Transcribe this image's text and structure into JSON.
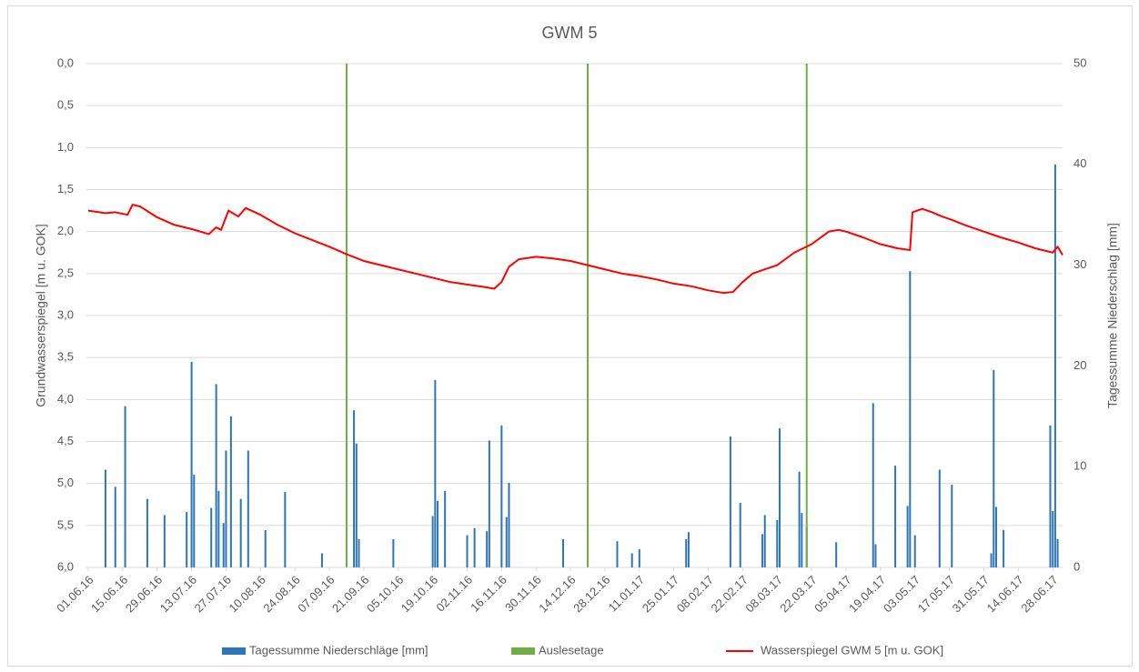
{
  "chart_data": {
    "type": "combo",
    "title": "GWM 5",
    "ylabel": "Grundwasserspiegel [m u. GOK]",
    "y2label": "Tagessumme Niederschlag [mm]",
    "xlim": [
      "01.06.16",
      "02.07.17"
    ],
    "xticks": [
      "01.06.16",
      "15.06.16",
      "29.06.16",
      "13.07.16",
      "27.07.16",
      "10.08.16",
      "24.08.16",
      "07.09.16",
      "21.09.16",
      "05.10.16",
      "19.10.16",
      "02.11.16",
      "16.11.16",
      "30.11.16",
      "14.12.16",
      "28.12.16",
      "11.01.17",
      "25.01.17",
      "08.02.17",
      "22.02.17",
      "08.03.17",
      "22.03.17",
      "05.04.17",
      "19.04.17",
      "03.05.17",
      "17.05.17",
      "31.05.17",
      "14.06.17",
      "28.06.17"
    ],
    "ylim": [
      0,
      6
    ],
    "yreverse": true,
    "yticks": [
      {
        "value": 0,
        "label": "0,0"
      },
      {
        "value": 0.5,
        "label": "0,5"
      },
      {
        "value": 1,
        "label": "1,0"
      },
      {
        "value": 1.5,
        "label": "1,5"
      },
      {
        "value": 2,
        "label": "2,0"
      },
      {
        "value": 2.5,
        "label": "2,5"
      },
      {
        "value": 3,
        "label": "3,0"
      },
      {
        "value": 3.5,
        "label": "3,5"
      },
      {
        "value": 4,
        "label": "4,0"
      },
      {
        "value": 4.5,
        "label": "4,5"
      },
      {
        "value": 5,
        "label": "5,0"
      },
      {
        "value": 5.5,
        "label": "5,5"
      },
      {
        "value": 6,
        "label": "6,0"
      }
    ],
    "y2lim": [
      0,
      50
    ],
    "y2ticks": [
      0,
      10,
      20,
      30,
      40,
      50
    ],
    "grid": true,
    "legend": "bottom",
    "series": [
      {
        "name": "Tagessumme Niederschläge [mm]",
        "type": "bar",
        "axis": "y2",
        "color": "#2e75b6",
        "x": [
          "08.06.16",
          "12.06.16",
          "16.06.16",
          "25.06.16",
          "02.07.16",
          "11.07.16",
          "13.07.16",
          "14.07.16",
          "21.07.16",
          "23.07.16",
          "24.07.16",
          "26.07.16",
          "27.07.16",
          "29.07.16",
          "02.08.16",
          "05.08.16",
          "12.08.16",
          "20.08.16",
          "04.09.16",
          "17.09.16",
          "18.09.16",
          "19.09.16",
          "03.10.16",
          "19.10.16",
          "20.10.16",
          "21.10.16",
          "24.10.16",
          "02.11.16",
          "05.11.16",
          "10.11.16",
          "11.11.16",
          "16.11.16",
          "18.11.16",
          "19.11.16",
          "11.12.16",
          "02.01.17",
          "08.01.17",
          "11.01.17",
          "30.01.17",
          "31.01.17",
          "17.02.17",
          "21.02.17",
          "02.03.17",
          "03.03.17",
          "08.03.17",
          "09.03.17",
          "17.03.17",
          "18.03.17",
          "20.03.17",
          "01.04.17",
          "16.04.17",
          "17.04.17",
          "25.04.17",
          "30.04.17",
          "01.05.17",
          "03.05.17",
          "13.05.17",
          "18.05.17",
          "03.06.17",
          "04.06.17",
          "05.06.17",
          "08.06.17",
          "27.06.17",
          "28.06.17",
          "29.06.17",
          "30.06.17"
        ],
        "values": [
          9.7,
          8,
          16,
          6.8,
          5.2,
          5.5,
          20.4,
          9.2,
          5.9,
          18.2,
          7.6,
          4.4,
          11.6,
          15,
          6.8,
          11.6,
          3.7,
          7.5,
          1.4,
          15.6,
          12.3,
          2.8,
          2.8,
          5.1,
          18.6,
          6.6,
          7.6,
          3.2,
          3.9,
          3.6,
          12.6,
          14.1,
          5,
          8.4,
          2.8,
          2.6,
          1.4,
          1.8,
          2.8,
          3.5,
          13,
          6.4,
          3.3,
          5.2,
          4.7,
          13.8,
          9.5,
          5.4,
          4,
          2.5,
          16.3,
          2.3,
          10.1,
          6.1,
          29.4,
          3.2,
          9.7,
          8.2,
          1.4,
          19.6,
          6,
          3.7,
          14.1,
          5.6,
          40,
          2.8
        ]
      },
      {
        "name": "Auslesetage",
        "type": "vline",
        "color": "#70ad47",
        "x": [
          "14.09.16",
          "21.12.16",
          "20.03.17"
        ]
      },
      {
        "name": "Wasserspiegel GWM 5 [m u. GOK]",
        "type": "line",
        "color": "#ff0000",
        "x": [
          "01.06.16",
          "08.06.16",
          "12.06.16",
          "17.06.16",
          "19.06.16",
          "22.06.16",
          "29.06.16",
          "06.07.16",
          "13.07.16",
          "20.07.16",
          "23.07.16",
          "25.07.16",
          "28.07.16",
          "01.08.16",
          "04.08.16",
          "10.08.16",
          "17.08.16",
          "24.08.16",
          "31.08.16",
          "07.09.16",
          "14.09.16",
          "21.09.16",
          "28.09.16",
          "05.10.16",
          "12.10.16",
          "19.10.16",
          "26.10.16",
          "02.11.16",
          "09.11.16",
          "13.11.16",
          "16.11.16",
          "19.11.16",
          "23.11.16",
          "30.11.16",
          "07.12.16",
          "14.12.16",
          "21.12.16",
          "28.12.16",
          "04.01.17",
          "11.01.17",
          "18.01.17",
          "25.01.17",
          "01.02.17",
          "08.02.17",
          "14.02.17",
          "18.02.17",
          "22.02.17",
          "26.02.17",
          "03.03.17",
          "08.03.17",
          "15.03.17",
          "22.03.17",
          "29.03.17",
          "02.04.17",
          "05.04.17",
          "12.04.17",
          "19.04.17",
          "26.04.17",
          "01.05.17",
          "02.05.17",
          "06.05.17",
          "10.05.17",
          "14.05.17",
          "17.05.17",
          "24.05.17",
          "31.05.17",
          "07.06.17",
          "14.06.17",
          "21.06.17",
          "28.06.17",
          "30.06.17",
          "02.07.17"
        ],
        "values": [
          1.75,
          1.78,
          1.77,
          1.8,
          1.68,
          1.7,
          1.83,
          1.92,
          1.97,
          2.03,
          1.95,
          1.98,
          1.75,
          1.82,
          1.72,
          1.8,
          1.92,
          2.02,
          2.1,
          2.18,
          2.27,
          2.35,
          2.4,
          2.45,
          2.5,
          2.55,
          2.6,
          2.63,
          2.66,
          2.68,
          2.6,
          2.42,
          2.33,
          2.3,
          2.32,
          2.35,
          2.4,
          2.45,
          2.5,
          2.53,
          2.57,
          2.62,
          2.65,
          2.7,
          2.73,
          2.72,
          2.6,
          2.5,
          2.45,
          2.4,
          2.25,
          2.15,
          2,
          1.98,
          2,
          2.07,
          2.15,
          2.2,
          2.22,
          1.77,
          1.73,
          1.77,
          1.82,
          1.85,
          1.93,
          2,
          2.07,
          2.13,
          2.2,
          2.25,
          2.18,
          2.28
        ]
      }
    ]
  }
}
